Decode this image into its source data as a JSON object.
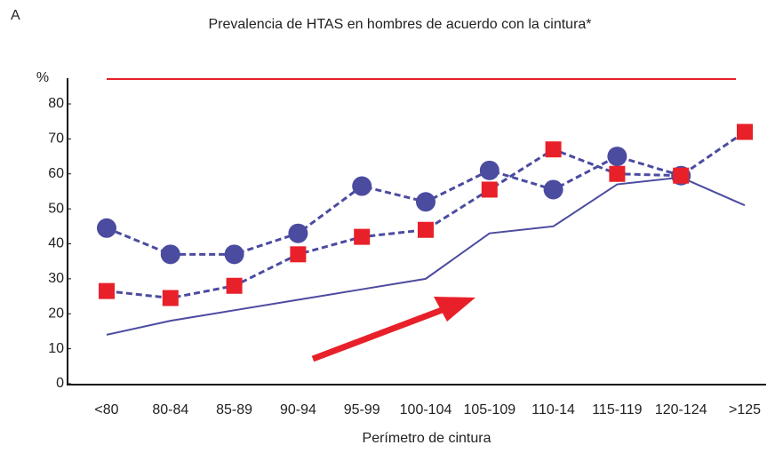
{
  "panel_label": "A",
  "chart_data": {
    "type": "line",
    "title": "Prevalencia de HTAS en hombres de acuerdo con la cintura*",
    "x_label": "Perímetro de cintura",
    "y_label": "%",
    "categories": [
      "<80",
      "80-84",
      "85-89",
      "90-94",
      "95-99",
      "100-104",
      "105-109",
      "110-14",
      "115-119",
      "120-124",
      ">125"
    ],
    "series": [
      {
        "color": "#4b4ba0",
        "marker": "circle",
        "dashed": true,
        "values": [
          44.5,
          37,
          37,
          43,
          56.5,
          52,
          61,
          55.5,
          65,
          59.5,
          null
        ]
      },
      {
        "color": "#e8202a",
        "line_color": "#4b4ba0",
        "marker": "square",
        "dashed": true,
        "values": [
          26.5,
          24.5,
          28,
          37,
          42,
          44,
          55.5,
          67,
          60,
          59.5,
          72
        ]
      },
      {
        "color": "#4b4ba0",
        "marker": "none",
        "dashed": false,
        "values": [
          14,
          18,
          21,
          24,
          27,
          30,
          43,
          45,
          57,
          59,
          51
        ]
      }
    ],
    "ylim": [
      0,
      80
    ],
    "yticks": [
      0,
      10,
      20,
      30,
      40,
      50,
      60,
      70,
      80
    ],
    "grid": false
  }
}
